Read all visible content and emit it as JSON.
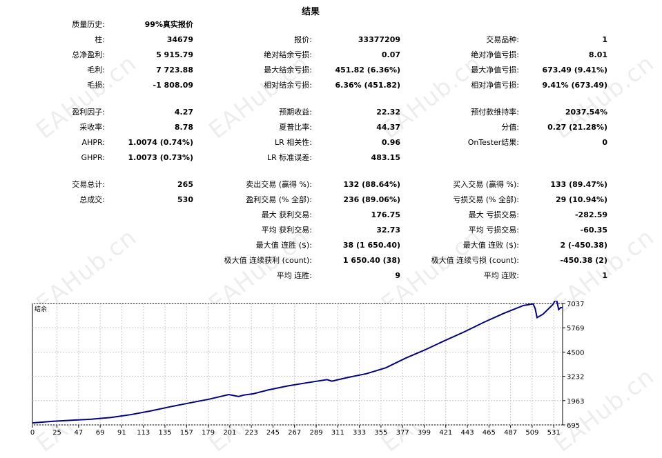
{
  "title": "结果",
  "watermark": "EAHub.cn",
  "quality": {
    "label": "质量历史:",
    "value": "99%真实报价"
  },
  "rows": [
    {
      "top": 50,
      "c1": [
        "柱:",
        "34679"
      ],
      "c2": [
        "报价:",
        "33377209"
      ],
      "c3": [
        "交易品种:",
        "1"
      ]
    },
    {
      "top": 72,
      "c1": [
        "总净盈利:",
        "5 915.79"
      ],
      "c2": [
        "绝对结余亏损:",
        "0.07"
      ],
      "c3": [
        "绝对净值亏损:",
        "8.01"
      ]
    },
    {
      "top": 94,
      "c1": [
        "毛利:",
        "7 723.88"
      ],
      "c2": [
        "最大结余亏损:",
        "451.82 (6.36%)"
      ],
      "c3": [
        "最大净值亏损:",
        "673.49 (9.41%)"
      ]
    },
    {
      "top": 116,
      "c1": [
        "毛损:",
        "-1 808.09"
      ],
      "c2": [
        "相对结余亏损:",
        "6.36% (451.82)"
      ],
      "c3": [
        "相对净值亏损:",
        "9.41% (673.49)"
      ]
    },
    {
      "top": 155,
      "c1": [
        "盈利因子:",
        "4.27"
      ],
      "c2": [
        "预期收益:",
        "22.32"
      ],
      "c3": [
        "预付款维持率:",
        "2037.54%"
      ]
    },
    {
      "top": 177,
      "c1": [
        "采收率:",
        "8.78"
      ],
      "c2": [
        "夏普比率:",
        "44.37"
      ],
      "c3": [
        "分值:",
        "0.27 (21.28%)"
      ]
    },
    {
      "top": 199,
      "c1": [
        "AHPR:",
        "1.0074 (0.74%)"
      ],
      "c2": [
        "LR 相关性:",
        "0.96"
      ],
      "c3": [
        "OnTester结果:",
        "0"
      ]
    },
    {
      "top": 221,
      "c1": [
        "GHPR:",
        "1.0073 (0.73%)"
      ],
      "c2": [
        "LR 标准误差:",
        "483.15"
      ],
      "c3": null
    },
    {
      "top": 260,
      "c1": [
        "交易总计:",
        "265"
      ],
      "c2": [
        "卖出交易 (赢得 %):",
        "132 (88.64%)"
      ],
      "c3": [
        "买入交易 (赢得 %):",
        "133 (89.47%)"
      ]
    },
    {
      "top": 282,
      "c1": [
        "总成交:",
        "530"
      ],
      "c2": [
        "盈利交易 (% 全部):",
        "236 (89.06%)"
      ],
      "c3": [
        "亏损交易 (% 全部):",
        "29 (10.94%)"
      ]
    },
    {
      "top": 304,
      "c1": null,
      "c2": [
        "最大 获利交易:",
        "176.75"
      ],
      "c3": [
        "最大 亏损交易:",
        "-282.59"
      ]
    },
    {
      "top": 326,
      "c1": null,
      "c2": [
        "平均 获利交易:",
        "32.73"
      ],
      "c3": [
        "平均 亏损交易:",
        "-60.35"
      ]
    },
    {
      "top": 348,
      "c1": null,
      "c2": [
        "最大值 连胜 ($):",
        "38 (1 650.40)"
      ],
      "c3": [
        "最大值 连败 ($):",
        "2 (-450.38)"
      ]
    },
    {
      "top": 370,
      "c1": null,
      "c2": [
        "极大值 连续获利 (count):",
        "1 650.40 (38)"
      ],
      "c3": [
        "极大值 连续亏损 (count):",
        "-450.38 (2)"
      ]
    },
    {
      "top": 392,
      "c1": null,
      "c2": [
        "平均 连胜:",
        "9"
      ],
      "c3": [
        "平均 连败:",
        "1"
      ]
    }
  ],
  "chart_data": {
    "type": "line",
    "title": "结余",
    "line_color": "#000080",
    "grid": true,
    "x_ticks": [
      0,
      25,
      47,
      69,
      91,
      113,
      135,
      157,
      179,
      201,
      223,
      245,
      267,
      289,
      311,
      333,
      355,
      377,
      399,
      421,
      443,
      465,
      487,
      509,
      531
    ],
    "y_ticks": [
      695,
      1963,
      3232,
      4500,
      5769,
      7037
    ],
    "xlim": [
      0,
      540
    ],
    "ylim": [
      695,
      7037
    ],
    "x": [
      0,
      20,
      40,
      60,
      80,
      100,
      120,
      140,
      160,
      180,
      200,
      210,
      215,
      225,
      240,
      260,
      280,
      300,
      305,
      320,
      340,
      360,
      380,
      400,
      420,
      440,
      460,
      480,
      500,
      510,
      512,
      514,
      520,
      530,
      532,
      534,
      536,
      538,
      540
    ],
    "y": [
      800,
      880,
      940,
      990,
      1080,
      1230,
      1420,
      1640,
      1840,
      2040,
      2280,
      2180,
      2250,
      2320,
      2520,
      2730,
      2900,
      3060,
      2980,
      3160,
      3370,
      3680,
      4180,
      4620,
      5100,
      5560,
      6060,
      6520,
      6930,
      7020,
      6780,
      6300,
      6480,
      6980,
      7160,
      7200,
      6720,
      6820,
      6830
    ]
  }
}
